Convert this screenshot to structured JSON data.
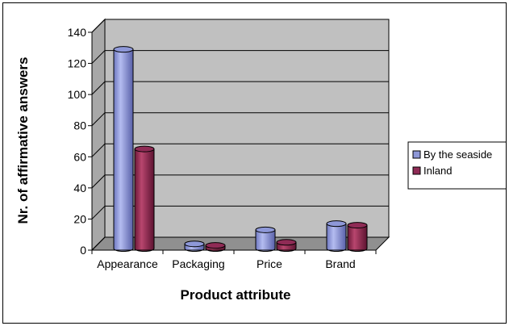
{
  "chart_data": {
    "type": "bar",
    "style": "3d-cylinder",
    "title": "",
    "xlabel": "Product attribute",
    "ylabel": "Nr. of affirmative answers",
    "categories": [
      "Appearance",
      "Packaging",
      "Price",
      "Brand"
    ],
    "series": [
      {
        "name": "By the seaside",
        "values": [
          128,
          3,
          12,
          16
        ],
        "color": "#8e98d8"
      },
      {
        "name": "Inland",
        "values": [
          64,
          2,
          4,
          15
        ],
        "color": "#8f2b55"
      }
    ],
    "ylim": [
      0,
      140
    ],
    "yticks": [
      0,
      20,
      40,
      60,
      80,
      100,
      120,
      140
    ],
    "grid": true,
    "legend": "right",
    "plot_background": "#c0c0c0"
  }
}
